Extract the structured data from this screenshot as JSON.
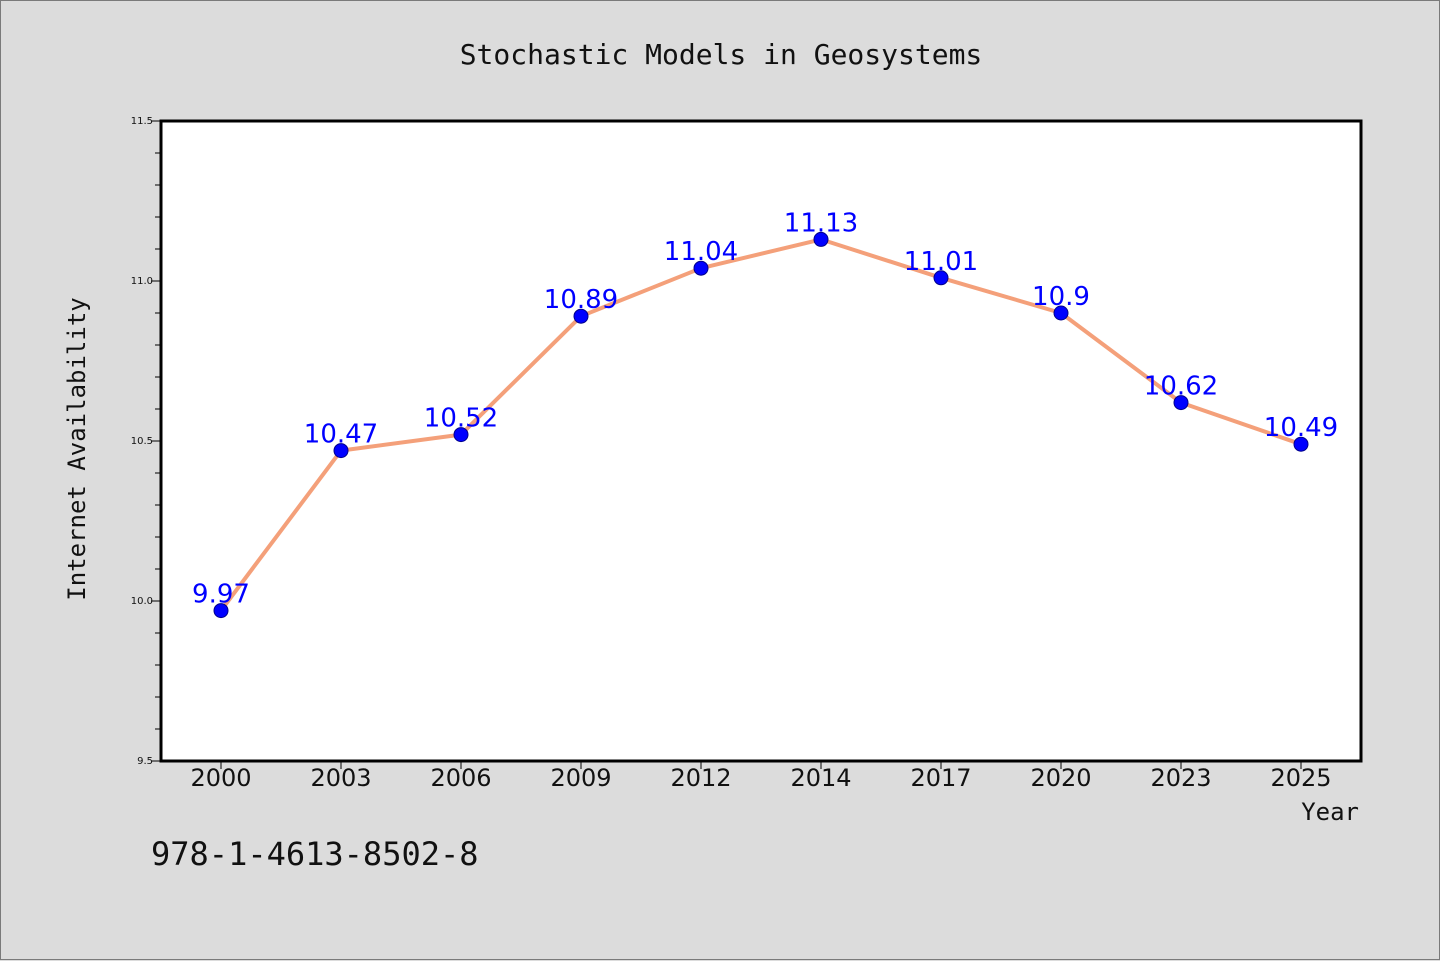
{
  "chart_data": {
    "type": "line",
    "title": "Stochastic Models in Geosystems",
    "xlabel": "Year",
    "ylabel": "Internet Availability",
    "categories": [
      "2000",
      "2003",
      "2006",
      "2009",
      "2012",
      "2014",
      "2017",
      "2020",
      "2023",
      "2025"
    ],
    "series": [
      {
        "values": [
          9.97,
          10.47,
          10.52,
          10.89,
          11.04,
          11.13,
          11.01,
          10.9,
          10.62,
          10.49
        ],
        "data_labels": [
          "9.97",
          "10.47",
          "10.52",
          "10.89",
          "11.04",
          "11.13",
          "11.01",
          "10.9",
          "10.62",
          "10.49"
        ],
        "line_color": "#f4a07a",
        "marker_color": "#0000ff"
      }
    ],
    "ylim": [
      9.5,
      11.5
    ],
    "yticks": [
      "9.5",
      "10.0",
      "10.5",
      "11.0",
      "11.5"
    ],
    "grid": false,
    "legend": "none"
  },
  "footer": {
    "isbn": "978-1-4613-8502-8"
  },
  "colors": {
    "background": "#dcdcdc",
    "plot_background": "#ffffff",
    "line": "#f4a07a",
    "marker": "#0000ff",
    "data_label": "#0000ff"
  }
}
